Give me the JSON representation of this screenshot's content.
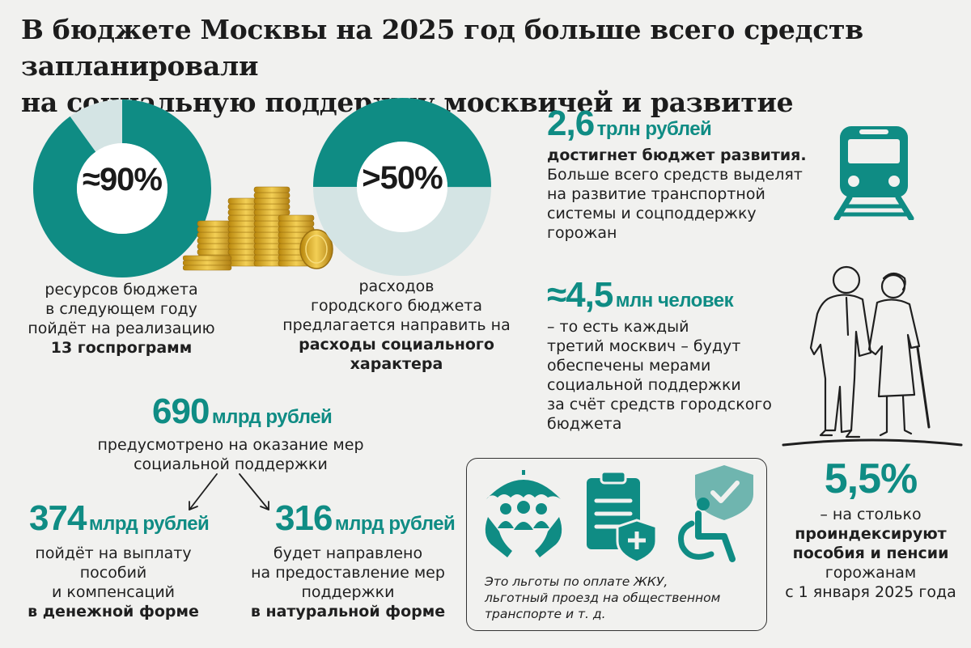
{
  "title": {
    "line1": "В бюджете Москвы на 2025 год больше всего средств запланировали",
    "line2": "на социальную поддержку москвичей и развитие"
  },
  "colors": {
    "accent": "#0f8c84",
    "light": "#d4e4e4",
    "gold": "#d9a82a",
    "background": "#f1f1ef"
  },
  "donut1": {
    "value_label": "≈90%",
    "value": 90,
    "caption_lines": [
      "ресурсов бюджета",
      "в следующем году",
      "пойдёт на реализацию"
    ],
    "caption_bold": "13 госпрограмм"
  },
  "donut2": {
    "value_label": ">50%",
    "value": 50,
    "caption_lines": [
      "расходов",
      "городского бюджета",
      "предлагается направить на"
    ],
    "caption_bold_lines": [
      "расходы социального",
      "характера"
    ]
  },
  "development": {
    "number": "2,6",
    "unit": "трлн рублей",
    "bold_line": "достигнет бюджет развития.",
    "lines": [
      "Больше всего средств выделят",
      "на развитие транспортной",
      "системы и соцподдержку",
      "горожан"
    ],
    "icon": "train-icon"
  },
  "people": {
    "number": "≈4,5",
    "unit": "млн человек",
    "lines": [
      "– то есть каждый",
      "третий москвич – будут",
      "обеспечены мерами",
      "социальной поддержки",
      "за счёт средств городского",
      "бюджета"
    ],
    "icon": "elderly-couple-icon"
  },
  "total_support": {
    "number": "690",
    "unit": "млрд рублей",
    "lines": [
      "предусмотрено на оказание мер",
      "социальной поддержки"
    ]
  },
  "cash": {
    "number": "374",
    "unit": "млрд рублей",
    "lines": [
      "пойдёт на выплату",
      "пособий",
      "и компенсаций"
    ],
    "bold": "в денежной форме"
  },
  "in_kind": {
    "number": "316",
    "unit": "млрд рублей",
    "lines": [
      "будет направлено",
      "на предоставление мер",
      "поддержки"
    ],
    "bold": "в натуральной форме"
  },
  "benefits_box": {
    "icons": [
      "family-umbrella-icon",
      "clipboard-medical-icon",
      "wheelchair-shield-icon"
    ],
    "note_lines": [
      "Это льготы по оплате ЖКУ,",
      "льготный проезд на общественном",
      "транспорте и т. д."
    ]
  },
  "indexation": {
    "number": "5,5%",
    "line1": "– на столько",
    "bold_lines": [
      "проиндексируют",
      "пособия и пенсии"
    ],
    "lines": [
      "горожанам",
      "с 1 января 2025 года"
    ]
  }
}
